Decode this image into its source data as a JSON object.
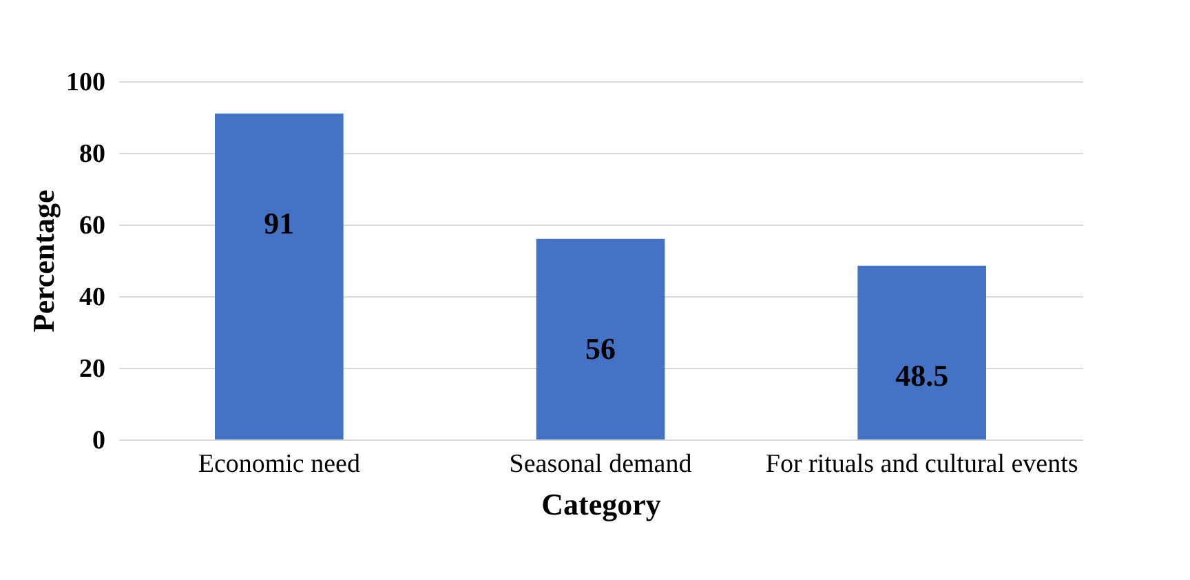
{
  "chart_data": {
    "type": "bar",
    "xlabel": "Category",
    "ylabel": "Percentage",
    "categories": [
      "Economic need",
      "Seasonal demand",
      "For rituals and cultural events"
    ],
    "values": [
      91,
      56,
      48.5
    ],
    "color": "#4472c4",
    "ylim": [
      0,
      100
    ],
    "yticks": [
      0,
      20,
      40,
      60,
      80,
      100
    ],
    "grid": "y",
    "data_labels": true
  }
}
